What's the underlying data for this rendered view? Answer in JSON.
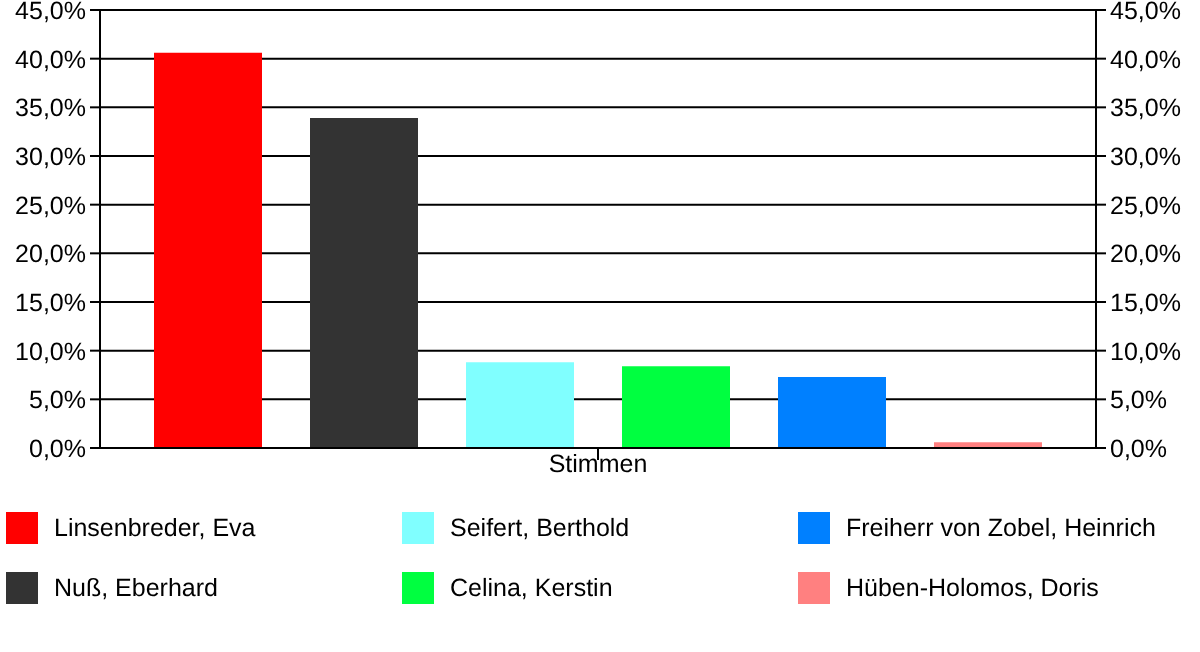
{
  "chart_data": {
    "type": "bar",
    "xlabel": "Stimmen",
    "categories": [
      null
    ],
    "series": [
      {
        "name": "Linsenbreder, Eva",
        "color": "#ff0000",
        "values": [
          40.6
        ]
      },
      {
        "name": "Nuß, Eberhard",
        "color": "#333333",
        "values": [
          33.9
        ]
      },
      {
        "name": "Seifert, Berthold",
        "color": "#80ffff",
        "values": [
          8.8
        ]
      },
      {
        "name": "Celina, Kerstin",
        "color": "#00ff40",
        "values": [
          8.4
        ]
      },
      {
        "name": "Freiherr von Zobel, Heinrich",
        "color": "#0080ff",
        "values": [
          7.3
        ]
      },
      {
        "name": "Hüben-Holomos, Doris",
        "color": "#ff8080",
        "values": [
          0.6
        ]
      }
    ],
    "ylim": [
      0,
      45
    ],
    "yticks": [
      {
        "value": 0,
        "label": "0,0%"
      },
      {
        "value": 5,
        "label": "5,0%"
      },
      {
        "value": 10,
        "label": "10,0%"
      },
      {
        "value": 15,
        "label": "15,0%"
      },
      {
        "value": 20,
        "label": "20,0%"
      },
      {
        "value": 25,
        "label": "25,0%"
      },
      {
        "value": 30,
        "label": "30,0%"
      },
      {
        "value": 35,
        "label": "35,0%"
      },
      {
        "value": 40,
        "label": "40,0%"
      },
      {
        "value": 45,
        "label": "45,0%"
      }
    ],
    "y2lim": [
      0,
      45
    ],
    "y2ticks": [
      {
        "value": 0,
        "label": "0,0%"
      },
      {
        "value": 5,
        "label": "5,0%"
      },
      {
        "value": 10,
        "label": "10,0%"
      },
      {
        "value": 15,
        "label": "15,0%"
      },
      {
        "value": 20,
        "label": "20,0%"
      },
      {
        "value": 25,
        "label": "25,0%"
      },
      {
        "value": 30,
        "label": "30,0%"
      },
      {
        "value": 35,
        "label": "35,0%"
      },
      {
        "value": 40,
        "label": "40,0%"
      },
      {
        "value": 45,
        "label": "45,0%"
      }
    ],
    "grid": "y",
    "legend": "bottom"
  }
}
